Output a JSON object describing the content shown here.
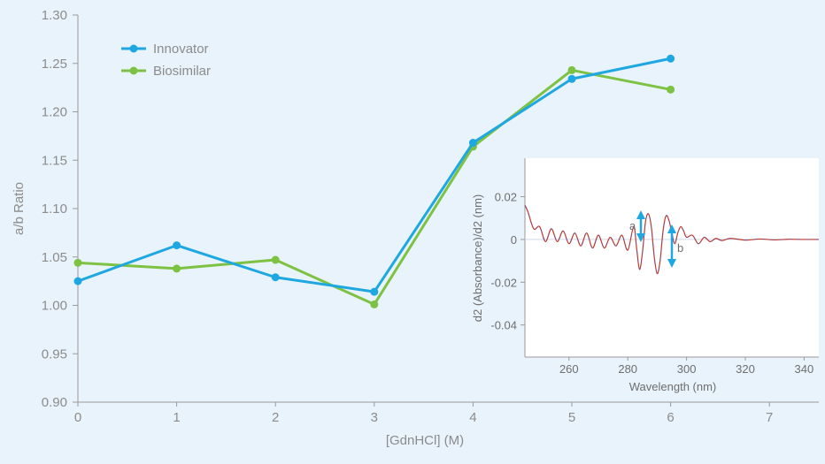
{
  "chart_data": [
    {
      "type": "line",
      "title": "",
      "xlabel": "[GdnHCl] (M)",
      "ylabel": "a/b Ratio",
      "xlim": [
        0,
        7.5
      ],
      "ylim": [
        0.9,
        1.3
      ],
      "x_ticks": [
        "0",
        "1",
        "2",
        "3",
        "4",
        "5",
        "6",
        "7"
      ],
      "y_ticks": [
        "0.90",
        "0.95",
        "1.00",
        "1.05",
        "1.10",
        "1.15",
        "1.20",
        "1.25",
        "1.30"
      ],
      "legend_position": "top-left",
      "series": [
        {
          "name": "Innovator",
          "color": "#1ea7e1",
          "x": [
            0,
            1,
            2,
            3,
            4,
            5,
            6
          ],
          "y": [
            1.025,
            1.062,
            1.029,
            1.014,
            1.168,
            1.234,
            1.255
          ]
        },
        {
          "name": "Biosimilar",
          "color": "#7dc242",
          "x": [
            0,
            1,
            2,
            3,
            4,
            5,
            6
          ],
          "y": [
            1.044,
            1.038,
            1.047,
            1.001,
            1.164,
            1.243,
            1.223
          ]
        }
      ]
    },
    {
      "type": "line",
      "title": "",
      "xlabel": "Wavelength (nm)",
      "ylabel": "d2 (Absorbance)/d2 (nm)",
      "xlim": [
        245,
        345
      ],
      "ylim": [
        -0.055,
        0.038
      ],
      "x_ticks": [
        "260",
        "280",
        "300",
        "320",
        "340"
      ],
      "y_ticks": [
        "0.02",
        "0",
        "-0.02",
        "-0.04"
      ],
      "annotations": [
        "a",
        "b"
      ],
      "series": [
        {
          "name": "spectrum",
          "color": "#c0392b",
          "x": [
            245,
            246,
            248,
            250,
            252,
            254,
            256,
            258,
            260,
            262,
            264,
            266,
            268,
            270,
            272,
            274,
            276,
            278,
            280,
            282,
            283,
            284,
            285,
            286,
            287,
            288,
            289,
            290,
            291,
            292,
            293,
            294,
            295,
            296,
            297,
            298,
            299,
            300,
            302,
            304,
            306,
            308,
            310,
            312,
            315,
            320,
            325,
            330,
            335,
            340,
            345
          ],
          "y": [
            0.016,
            0.013,
            0.005,
            0.006,
            -0.001,
            0.005,
            -0.001,
            0.004,
            -0.002,
            0.003,
            -0.003,
            0.003,
            -0.004,
            0.002,
            -0.004,
            0.001,
            -0.003,
            0.002,
            -0.005,
            0.006,
            -0.004,
            -0.014,
            -0.006,
            0.008,
            0.012,
            0.006,
            -0.008,
            -0.016,
            -0.01,
            0.004,
            0.011,
            0.009,
            0.003,
            -0.002,
            0.003,
            0.006,
            0.004,
            0.001,
            0.002,
            -0.002,
            0.001,
            -0.001,
            0.0005,
            -0.0005,
            0.0005,
            -0.0003,
            0.0002,
            -0.0002,
            0.0001,
            0.0,
            0.0
          ]
        }
      ]
    }
  ]
}
